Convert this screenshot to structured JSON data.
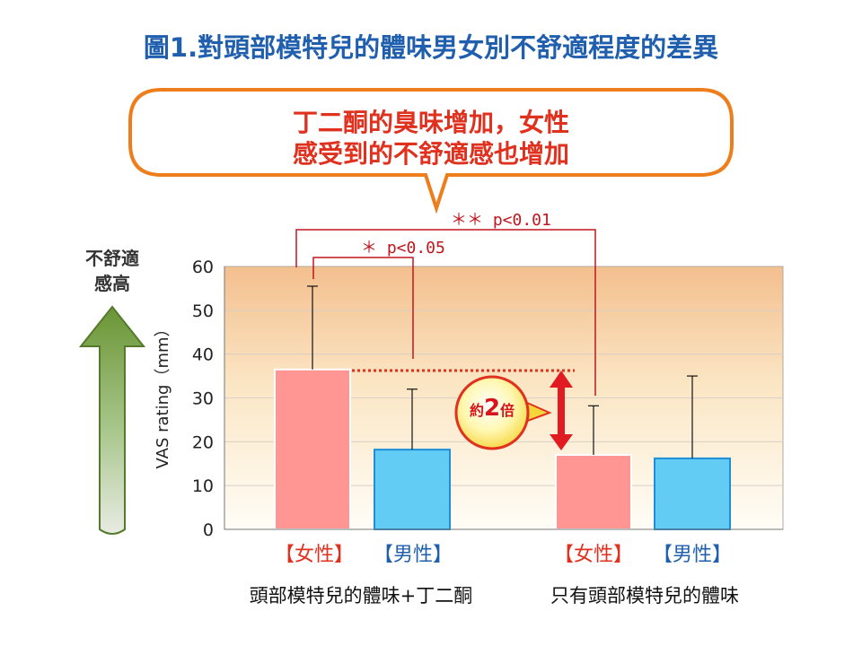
{
  "title": "圖1.對頭部模特兒的體味男女別不舒適程度的差異",
  "callout": {
    "line1": "丁二酮的臭味增加，女性",
    "line2": "感受到的不舒適感也增加"
  },
  "up_arrow_label": {
    "line1": "不舒適",
    "line2": "感高"
  },
  "badge": {
    "prefix": "約",
    "number": "2",
    "suffix": "倍"
  },
  "significance": {
    "p005": "＊ p<0.05",
    "p001": "＊＊ p<0.01"
  },
  "colors": {
    "female_bar": "#ff9694",
    "male_bar": "#62ccf5",
    "female_label": "#e0301e",
    "male_label": "#1f5fae",
    "bracket": "#c0161d",
    "title": "#1f5fae",
    "callout_border": "#ee7d1b"
  },
  "chart_data": {
    "type": "bar",
    "ylabel": "VAS rating（mm）",
    "ylim": [
      0,
      60
    ],
    "yticks": [
      0,
      10,
      20,
      30,
      40,
      50,
      60
    ],
    "grid": true,
    "groups": [
      "頭部模特兒的體味+丁二酮",
      "只有頭部模特兒的體味"
    ],
    "bars": [
      {
        "group": 0,
        "label": "【女性】",
        "sex": "female",
        "value": 36.5,
        "error_top": 55.5
      },
      {
        "group": 0,
        "label": "【男性】",
        "sex": "male",
        "value": 18.2,
        "error_top": 32.0
      },
      {
        "group": 1,
        "label": "【女性】",
        "sex": "female",
        "value": 17.0,
        "error_top": 28.2
      },
      {
        "group": 1,
        "label": "【男性】",
        "sex": "male",
        "value": 16.2,
        "error_top": 35.0
      }
    ],
    "annotations": [
      {
        "text": "＊ p<0.05",
        "between": [
          0,
          1
        ]
      },
      {
        "text": "＊＊ p<0.01",
        "between": [
          0,
          2
        ]
      },
      {
        "text": "約2倍",
        "between": [
          0,
          2
        ]
      }
    ]
  }
}
